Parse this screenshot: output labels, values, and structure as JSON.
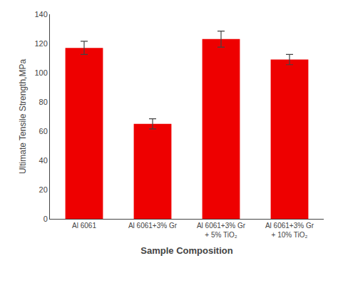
{
  "chart_data": {
    "type": "bar",
    "categories": [
      "Al 6061",
      "Al 6061+3% Gr",
      "Al 6061+3% Gr\n+ 5% TiO₂",
      "Al 6061+3% Gr\n+ 10% TiO₂"
    ],
    "values": [
      117,
      65,
      123,
      109
    ],
    "errors": [
      4.5,
      3.5,
      5.5,
      3.5
    ],
    "color": "#ee0000",
    "xlabel": "Sample Composition",
    "ylabel": "Ultimate Tensile Strength,MPa",
    "ylim": [
      0,
      140
    ],
    "yticks": [
      0,
      20,
      40,
      60,
      80,
      100,
      120,
      140
    ],
    "grid": false
  }
}
